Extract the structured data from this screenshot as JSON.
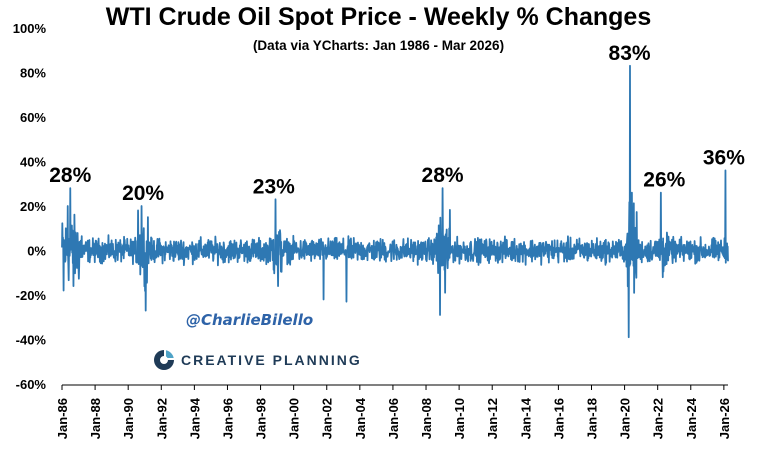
{
  "chart_data": {
    "type": "line",
    "title": "WTI Crude Oil Spot Price - Weekly % Changes",
    "subtitle": "(Data via YCharts: Jan 1986 - Mar 2026)",
    "xlabel": "",
    "ylabel": "",
    "ylim": [
      -60,
      100
    ],
    "y_ticks": [
      "100%",
      "80%",
      "60%",
      "40%",
      "20%",
      "0%",
      "-20%",
      "-40%",
      "-60%"
    ],
    "x_ticks": [
      "Jan-86",
      "Jan-88",
      "Jan-90",
      "Jan-92",
      "Jan-94",
      "Jan-96",
      "Jan-98",
      "Jan-00",
      "Jan-02",
      "Jan-04",
      "Jan-06",
      "Jan-08",
      "Jan-10",
      "Jan-12",
      "Jan-14",
      "Jan-16",
      "Jan-18",
      "Jan-20",
      "Jan-22",
      "Jan-24",
      "Jan-26"
    ],
    "grid": false,
    "line_color": "#2e78b3",
    "key_points": [
      {
        "x": 1986.1,
        "y": -18
      },
      {
        "x": 1986.35,
        "y": 20
      },
      {
        "x": 1986.5,
        "y": 28
      },
      {
        "x": 1986.7,
        "y": -16
      },
      {
        "x": 1990.6,
        "y": 18
      },
      {
        "x": 1990.8,
        "y": 20
      },
      {
        "x": 1991.05,
        "y": -27
      },
      {
        "x": 1991.2,
        "y": 15
      },
      {
        "x": 1998.9,
        "y": 23
      },
      {
        "x": 1999.05,
        "y": -16
      },
      {
        "x": 2001.8,
        "y": -22
      },
      {
        "x": 2003.2,
        "y": -23
      },
      {
        "x": 2008.85,
        "y": -29
      },
      {
        "x": 2009.0,
        "y": 28
      },
      {
        "x": 2009.15,
        "y": -19
      },
      {
        "x": 2020.25,
        "y": -39
      },
      {
        "x": 2020.33,
        "y": 83
      },
      {
        "x": 2020.45,
        "y": 26
      },
      {
        "x": 2022.2,
        "y": 26
      },
      {
        "x": 2022.3,
        "y": -12
      },
      {
        "x": 2026.1,
        "y": 36
      }
    ],
    "annotations": [
      {
        "text": "28%",
        "x": 1986.5,
        "y": 28
      },
      {
        "text": "20%",
        "x": 1990.9,
        "y": 20
      },
      {
        "text": "23%",
        "x": 1998.8,
        "y": 23
      },
      {
        "text": "28%",
        "x": 2009.0,
        "y": 28
      },
      {
        "text": "83%",
        "x": 2020.3,
        "y": 83
      },
      {
        "text": "26%",
        "x": 2022.4,
        "y": 26
      },
      {
        "text": "36%",
        "x": 2026.0,
        "y": 36
      }
    ]
  },
  "branding": {
    "handle": "@CharlieBilello",
    "logo_text": "CREATIVE PLANNING",
    "logo_color": "#1f3b57",
    "handle_color": "#2e63a8"
  }
}
